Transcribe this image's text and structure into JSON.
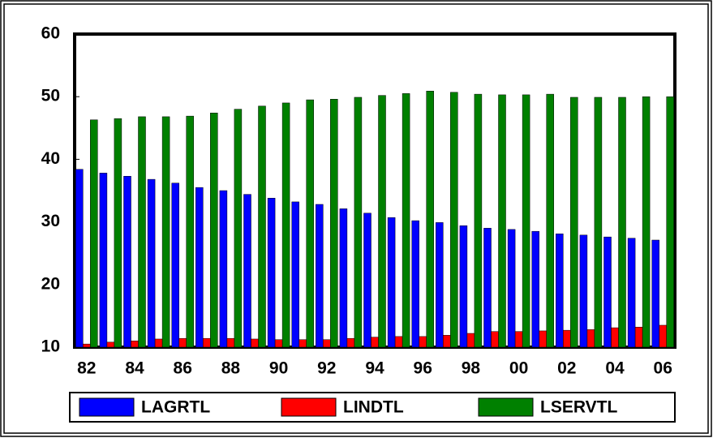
{
  "chart_data": {
    "type": "bar",
    "categories": [
      "82",
      null,
      "84",
      null,
      "86",
      null,
      "88",
      null,
      "90",
      null,
      "92",
      null,
      "94",
      null,
      "96",
      null,
      "98",
      null,
      "00",
      null,
      "02",
      null,
      "04",
      null,
      "06"
    ],
    "series": [
      {
        "name": "LAGRTL",
        "color": "#0000ff",
        "values": [
          38.4,
          37.8,
          37.3,
          36.8,
          36.2,
          35.5,
          35.0,
          34.4,
          33.8,
          33.2,
          32.8,
          32.1,
          31.4,
          30.7,
          30.2,
          29.9,
          29.4,
          29.0,
          28.8,
          28.5,
          28.1,
          27.9,
          27.6,
          27.4,
          27.1
        ]
      },
      {
        "name": "LINDTL",
        "color": "#ff0000",
        "values": [
          10.5,
          10.8,
          11.0,
          11.3,
          11.4,
          11.4,
          11.4,
          11.3,
          11.2,
          11.2,
          11.2,
          11.4,
          11.6,
          11.7,
          11.7,
          11.9,
          12.2,
          12.5,
          12.5,
          12.6,
          12.7,
          12.8,
          13.1,
          13.2,
          13.5
        ]
      },
      {
        "name": "LSERVTL",
        "color": "#008000",
        "values": [
          46.3,
          46.5,
          46.8,
          46.8,
          46.9,
          47.4,
          48.0,
          48.5,
          49.0,
          49.5,
          49.6,
          49.9,
          50.2,
          50.5,
          50.9,
          50.7,
          50.4,
          50.3,
          50.3,
          50.4,
          49.9,
          49.9,
          49.9,
          50.0,
          50.0
        ]
      }
    ],
    "ylim": [
      10,
      60
    ],
    "yticks": [
      10,
      20,
      30,
      40,
      50,
      60
    ],
    "grid": false,
    "legend": "bottom"
  }
}
